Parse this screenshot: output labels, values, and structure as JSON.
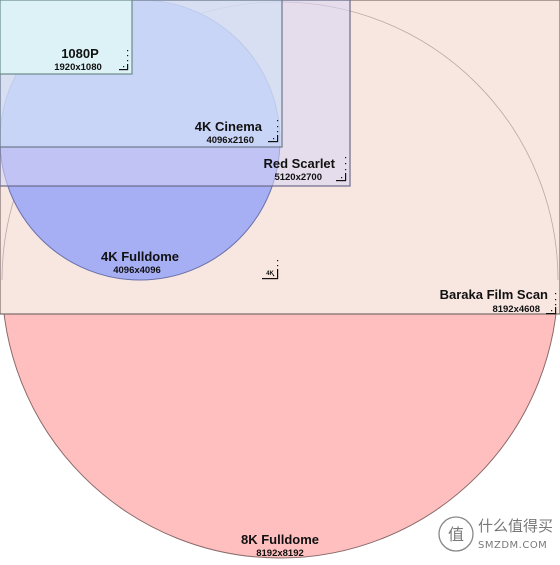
{
  "diagram": {
    "shapes": [
      {
        "key": "fulldome_8k",
        "shape": "circle",
        "name": "8K Fulldome",
        "resolution": "8192x8192",
        "fill": "#ffbfbf",
        "stroke": "#8a6a6a"
      },
      {
        "key": "baraka",
        "shape": "rect",
        "name": "Baraka Film Scan",
        "resolution": "8192x4608",
        "fill": "#f8e6e1",
        "stroke": "#7a6a6a"
      },
      {
        "key": "fulldome_4k",
        "shape": "circle",
        "name": "4K Fulldome",
        "resolution": "4096x4096",
        "fill": "#a6aef4",
        "stroke": "#6a70a8"
      },
      {
        "key": "red_scarlet",
        "shape": "rect",
        "name": "Red Scarlet",
        "resolution": "5120x2700",
        "fill": "#d7d5f5",
        "stroke": "#6a6a8a"
      },
      {
        "key": "cinema_4k",
        "shape": "rect",
        "name": "4K Cinema",
        "resolution": "4096x2160",
        "fill": "#cfe1f8",
        "stroke": "#6a7a8a"
      },
      {
        "key": "p1080",
        "shape": "rect",
        "name": "1080P",
        "resolution": "1920x1080",
        "fill": "#dcf2f6",
        "stroke": "#6a8a8a"
      }
    ],
    "small_label": "4K"
  },
  "watermark": {
    "cn": "什么值得买",
    "en": "SMZDM.COM",
    "badge_glyph": "值"
  }
}
